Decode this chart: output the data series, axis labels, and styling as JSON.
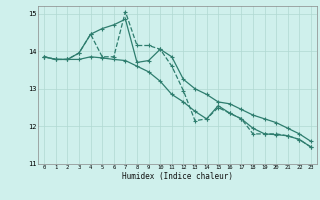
{
  "xlabel": "Humidex (Indice chaleur)",
  "xlim": [
    -0.5,
    23.5
  ],
  "ylim": [
    11,
    15.2
  ],
  "yticks": [
    11,
    12,
    13,
    14,
    15
  ],
  "xticks": [
    0,
    1,
    2,
    3,
    4,
    5,
    6,
    7,
    8,
    9,
    10,
    11,
    12,
    13,
    14,
    15,
    16,
    17,
    18,
    19,
    20,
    21,
    22,
    23
  ],
  "background_color": "#cff0ec",
  "grid_color": "#b0d8d2",
  "line_color": "#2e7d6e",
  "series1_x": [
    0,
    1,
    2,
    3,
    4,
    5,
    6,
    7,
    8,
    9,
    10,
    11,
    12,
    13,
    14,
    15,
    16,
    17,
    18,
    19,
    20,
    21,
    22,
    23
  ],
  "series1_y": [
    13.85,
    13.78,
    13.78,
    13.95,
    14.45,
    13.85,
    13.85,
    15.05,
    14.15,
    14.15,
    14.05,
    13.6,
    12.95,
    12.15,
    12.2,
    12.5,
    12.35,
    12.2,
    11.8,
    11.8,
    11.8,
    11.75,
    11.65,
    11.45
  ],
  "series2_x": [
    0,
    1,
    2,
    3,
    4,
    5,
    6,
    7,
    8,
    9,
    10,
    11,
    12,
    13,
    14,
    15,
    16,
    17,
    18,
    19,
    20,
    21,
    22,
    23
  ],
  "series2_y": [
    13.85,
    13.78,
    13.78,
    13.95,
    14.45,
    14.6,
    14.7,
    14.85,
    13.7,
    13.75,
    14.05,
    13.85,
    13.25,
    13.0,
    12.85,
    12.65,
    12.6,
    12.45,
    12.3,
    12.2,
    12.1,
    11.95,
    11.8,
    11.6
  ],
  "series3_x": [
    0,
    1,
    2,
    3,
    4,
    5,
    6,
    7,
    8,
    9,
    10,
    11,
    12,
    13,
    14,
    15,
    16,
    17,
    18,
    19,
    20,
    21,
    22,
    23
  ],
  "series3_y": [
    13.85,
    13.78,
    13.78,
    13.78,
    13.85,
    13.82,
    13.78,
    13.75,
    13.6,
    13.45,
    13.2,
    12.85,
    12.65,
    12.4,
    12.2,
    12.55,
    12.35,
    12.2,
    11.95,
    11.8,
    11.78,
    11.75,
    11.65,
    11.45
  ]
}
